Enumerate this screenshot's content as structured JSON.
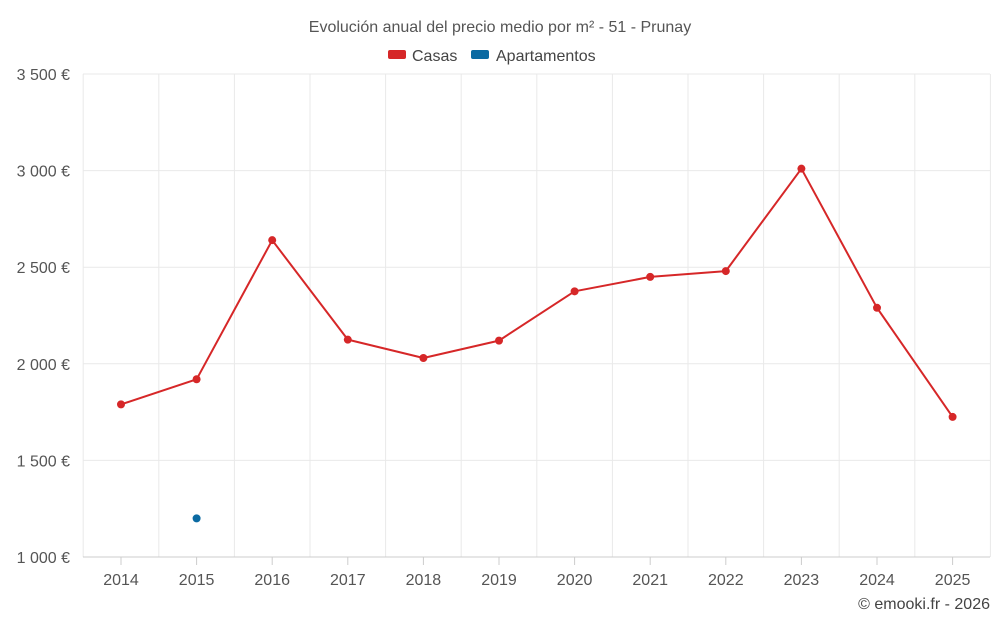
{
  "chart_data": {
    "type": "line",
    "title": "Evolución anual del precio medio por m² - 51 - Prunay",
    "categories": [
      "2014",
      "2015",
      "2016",
      "2017",
      "2018",
      "2019",
      "2020",
      "2021",
      "2022",
      "2023",
      "2024",
      "2025"
    ],
    "series": [
      {
        "name": "Casas",
        "color": "#d62728",
        "values": [
          1790,
          1920,
          2640,
          2125,
          2030,
          2120,
          2375,
          2450,
          2480,
          3010,
          2290,
          1725
        ]
      },
      {
        "name": "Apartamentos",
        "color": "#0b6aa2",
        "values": [
          null,
          1200,
          null,
          null,
          null,
          null,
          null,
          null,
          null,
          null,
          null,
          null
        ]
      }
    ],
    "ylim": [
      1000,
      3500
    ],
    "yticks": [
      1000,
      1500,
      2000,
      2500,
      3000,
      3500
    ],
    "ytick_labels": [
      "1 000 €",
      "1 500 €",
      "2 000 €",
      "2 500 €",
      "3 000 €",
      "3 500 €"
    ],
    "grid": true,
    "legend_position": "top-center",
    "xlabel": "",
    "ylabel": ""
  },
  "credit": "© emooki.fr - 2026"
}
